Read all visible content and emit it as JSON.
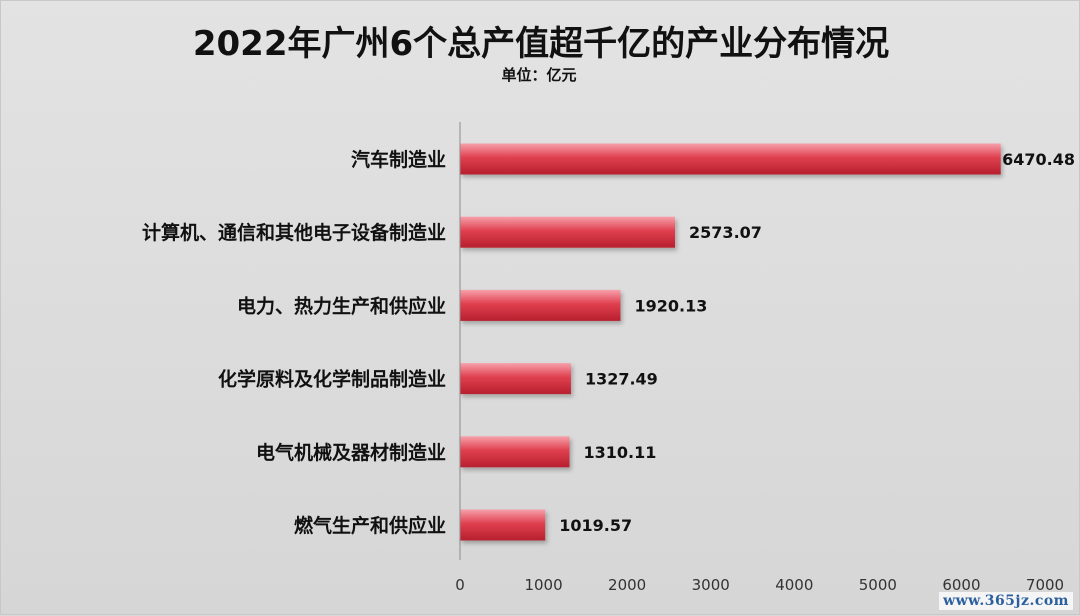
{
  "watermark": "www.365jz.com",
  "colors": {
    "bar_light": "#f6a1ab",
    "bar_mid": "#e0404f",
    "bar_dark": "#b71f2e",
    "text": "#111111",
    "axis": "#8c8c8c"
  },
  "chart_data": {
    "type": "bar",
    "orientation": "horizontal",
    "title": "2022年广州6个总产值超千亿的产业分布情况",
    "subtitle": "单位：亿元",
    "categories": [
      "汽车制造业",
      "计算机、通信和其他电子设备制造业",
      "电力、热力生产和供应业",
      "化学原料及化学制品制造业",
      "电气机械及器材制造业",
      "燃气生产和供应业"
    ],
    "values": [
      6470.48,
      2573.07,
      1920.13,
      1327.49,
      1310.11,
      1019.57
    ],
    "value_labels": [
      "6470.48",
      "2573.07",
      "1920.13",
      "1327.49",
      "1310.11",
      "1019.57"
    ],
    "xlim": [
      0,
      7000
    ],
    "xticks": [
      0,
      1000,
      2000,
      3000,
      4000,
      5000,
      6000,
      7000
    ],
    "grid": false,
    "legend": "none"
  }
}
